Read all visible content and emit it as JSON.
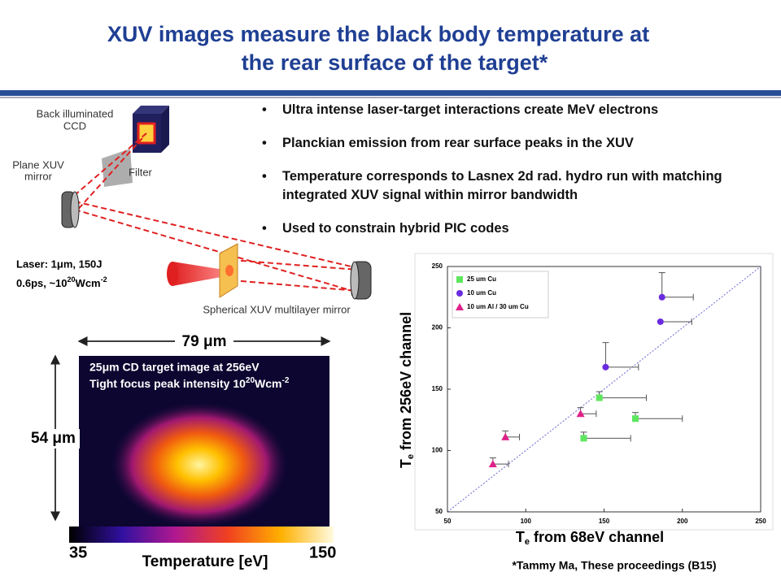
{
  "title": [
    "XUV images measure the black body temperature at",
    "the rear surface of the target*"
  ],
  "bullets": [
    "Ultra intense laser-target interactions create MeV electrons",
    "Planckian emission from rear surface peaks in the XUV",
    "Temperature corresponds to Lasnex 2d rad. hydro run with matching integrated XUV signal within mirror bandwidth",
    "Used to constrain hybrid PIC codes"
  ],
  "diagram": {
    "ccd_label": [
      "Back illuminated",
      "CCD"
    ],
    "filter_label": "Filter",
    "plane_mirror_label": [
      "Plane XUV",
      "mirror"
    ],
    "laser_line1": "Laser:  1μm, 150J",
    "laser_line2": {
      "text": "0.6ps,  ~10",
      "sup": "20",
      "unit": "Wcm",
      "sup2": "-2"
    },
    "spherical_mirror_label": "Spherical XUV multilayer mirror"
  },
  "image": {
    "width_label": "79 μm",
    "height_label": "54 μm",
    "caption1": "25μm CD target image at 256eV",
    "caption2": {
      "text": "Tight focus peak intensity 10",
      "sup": "20",
      "unit": "Wcm",
      "sup2": "-2"
    }
  },
  "colorbar": {
    "min": 35,
    "max": 150,
    "label": "Temperature [eV]"
  },
  "chart_data": {
    "type": "scatter",
    "x_label": [
      "T",
      "e",
      " from 68eV channel"
    ],
    "y_label": [
      "T",
      "e",
      " from 256eV channel"
    ],
    "xlim": [
      50,
      250
    ],
    "ylim": [
      50,
      250
    ],
    "xticks": [
      50,
      100,
      150,
      200,
      250
    ],
    "yticks": [
      50,
      100,
      150,
      200,
      250
    ],
    "diagonal": true,
    "legend": "upper left",
    "series": [
      {
        "name": "25 um Cu",
        "color": "#5ee65e",
        "marker": "square",
        "x": [
          137,
          147,
          170
        ],
        "values": [
          110,
          143,
          126
        ],
        "xerr": [
          30,
          30,
          30
        ],
        "yerr": [
          5,
          5,
          5
        ]
      },
      {
        "name": "10 um Cu",
        "color": "#6a2be0",
        "marker": "circle",
        "x": [
          151,
          186,
          187
        ],
        "values": [
          168,
          205,
          225
        ],
        "xerr": [
          21,
          20,
          20
        ],
        "yerr": [
          20,
          null,
          20
        ]
      },
      {
        "name": "10 um Al / 30 um Cu",
        "color": "#e0208a",
        "marker": "triangle",
        "x": [
          79,
          87,
          135
        ],
        "values": [
          89,
          111,
          130
        ],
        "xerr": [
          10,
          9,
          10
        ],
        "yerr": [
          5,
          5,
          5
        ]
      }
    ]
  },
  "footnote": "*Tammy Ma, These proceedings (B15)"
}
